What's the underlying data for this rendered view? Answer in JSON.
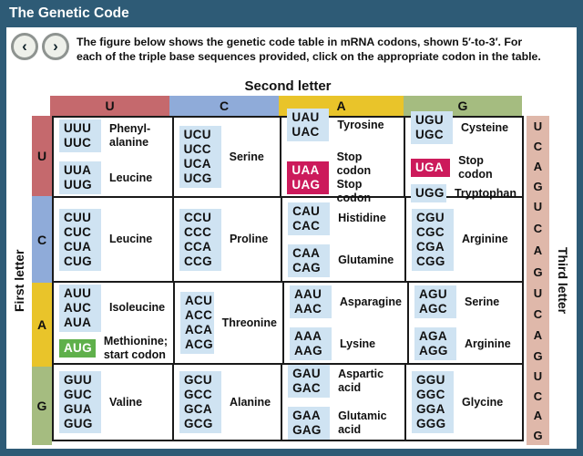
{
  "frame": {
    "title": "The Genetic Code"
  },
  "nav": {
    "back_icon": "‹",
    "forward_icon": "›"
  },
  "instructions": {
    "text": "The figure below shows the genetic code table in mRNA codons, shown 5′-to-3′. For\neach of the triple base sequences provided, click on the appropriate codon in the table."
  },
  "colors": {
    "frame": "#2e5b76",
    "codon-bg": "#cfe3f2",
    "stop-bg": "#cc1a5b",
    "start-bg": "#5fb04b",
    "third-strip-bg": "#dfb8aa"
  },
  "table": {
    "second_letter_label": "Second letter",
    "first_letter_label": "First letter",
    "third_letter_label": "Third letter",
    "column_headers": [
      {
        "letter": "U",
        "color": "#c5696d"
      },
      {
        "letter": "C",
        "color": "#8fabd9"
      },
      {
        "letter": "A",
        "color": "#e9c42a"
      },
      {
        "letter": "G",
        "color": "#a5bc80"
      }
    ],
    "third_letter_sequence": [
      "U",
      "C",
      "A",
      "G"
    ],
    "rows": [
      {
        "first_letter": "U",
        "color": "#c5696d",
        "cells": [
          {
            "groups": [
              {
                "codons": [
                  "UUU",
                  "UUC"
                ],
                "type": "normal",
                "label": "Phenyl-\nalanine"
              },
              {
                "codons": [
                  "UUA",
                  "UUG"
                ],
                "type": "normal",
                "label": "Leucine"
              }
            ]
          },
          {
            "groups": [
              {
                "codons": [
                  "UCU",
                  "UCC",
                  "UCA",
                  "UCG"
                ],
                "type": "normal",
                "label": "Serine"
              }
            ]
          },
          {
            "groups": [
              {
                "codons": [
                  "UAU",
                  "UAC"
                ],
                "type": "normal",
                "label": "Tyrosine"
              },
              {
                "codons": [
                  "UAA",
                  "UAG"
                ],
                "type": "stop",
                "label": "Stop codon\nStop codon"
              }
            ]
          },
          {
            "groups": [
              {
                "codons": [
                  "UGU",
                  "UGC"
                ],
                "type": "normal",
                "label": "Cysteine"
              },
              {
                "codons": [
                  "UGA"
                ],
                "type": "stop",
                "label": "Stop codon"
              },
              {
                "codons": [
                  "UGG"
                ],
                "type": "normal",
                "label": "Tryptophan"
              }
            ]
          }
        ]
      },
      {
        "first_letter": "C",
        "color": "#8fabd9",
        "cells": [
          {
            "groups": [
              {
                "codons": [
                  "CUU",
                  "CUC",
                  "CUA",
                  "CUG"
                ],
                "type": "normal",
                "label": "Leucine"
              }
            ]
          },
          {
            "groups": [
              {
                "codons": [
                  "CCU",
                  "CCC",
                  "CCA",
                  "CCG"
                ],
                "type": "normal",
                "label": "Proline"
              }
            ]
          },
          {
            "groups": [
              {
                "codons": [
                  "CAU",
                  "CAC"
                ],
                "type": "normal",
                "label": "Histidine"
              },
              {
                "codons": [
                  "CAA",
                  "CAG"
                ],
                "type": "normal",
                "label": "Glutamine"
              }
            ]
          },
          {
            "groups": [
              {
                "codons": [
                  "CGU",
                  "CGC",
                  "CGA",
                  "CGG"
                ],
                "type": "normal",
                "label": "Arginine"
              }
            ]
          }
        ]
      },
      {
        "first_letter": "A",
        "color": "#e9c42a",
        "cells": [
          {
            "groups": [
              {
                "codons": [
                  "AUU",
                  "AUC",
                  "AUA"
                ],
                "type": "normal",
                "label": "Isoleucine"
              },
              {
                "codons": [
                  "AUG"
                ],
                "type": "start",
                "label": "Methionine;\nstart codon"
              }
            ]
          },
          {
            "groups": [
              {
                "codons": [
                  "ACU",
                  "ACC",
                  "ACA",
                  "ACG"
                ],
                "type": "normal",
                "label": "Threonine"
              }
            ]
          },
          {
            "groups": [
              {
                "codons": [
                  "AAU",
                  "AAC"
                ],
                "type": "normal",
                "label": "Asparagine"
              },
              {
                "codons": [
                  "AAA",
                  "AAG"
                ],
                "type": "normal",
                "label": "Lysine"
              }
            ]
          },
          {
            "groups": [
              {
                "codons": [
                  "AGU",
                  "AGC"
                ],
                "type": "normal",
                "label": "Serine"
              },
              {
                "codons": [
                  "AGA",
                  "AGG"
                ],
                "type": "normal",
                "label": "Arginine"
              }
            ]
          }
        ]
      },
      {
        "first_letter": "G",
        "color": "#a5bc80",
        "cells": [
          {
            "groups": [
              {
                "codons": [
                  "GUU",
                  "GUC",
                  "GUA",
                  "GUG"
                ],
                "type": "normal",
                "label": "Valine"
              }
            ]
          },
          {
            "groups": [
              {
                "codons": [
                  "GCU",
                  "GCC",
                  "GCA",
                  "GCG"
                ],
                "type": "normal",
                "label": "Alanine"
              }
            ]
          },
          {
            "groups": [
              {
                "codons": [
                  "GAU",
                  "GAC"
                ],
                "type": "normal",
                "label": "Aspartic\nacid"
              },
              {
                "codons": [
                  "GAA",
                  "GAG"
                ],
                "type": "normal",
                "label": "Glutamic\nacid"
              }
            ]
          },
          {
            "groups": [
              {
                "codons": [
                  "GGU",
                  "GGC",
                  "GGA",
                  "GGG"
                ],
                "type": "normal",
                "label": "Glycine"
              }
            ]
          }
        ]
      }
    ]
  }
}
